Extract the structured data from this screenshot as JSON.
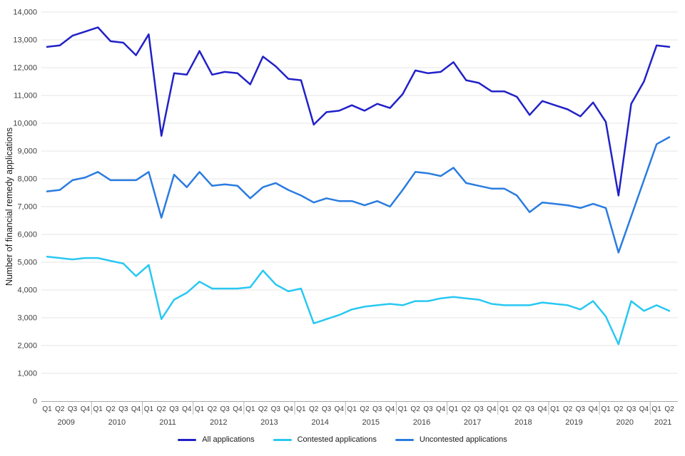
{
  "chart_data": {
    "type": "line",
    "title": "",
    "ylabel": "Number of financial remedy applications",
    "y_axis": {
      "min": 0,
      "max": 14000,
      "step": 1000
    },
    "grid": "horizontal",
    "legend_position": "bottom",
    "x_axis": {
      "years": [
        {
          "label": "2009",
          "quarters": [
            "Q1",
            "Q2",
            "Q3",
            "Q4"
          ]
        },
        {
          "label": "2010",
          "quarters": [
            "Q1",
            "Q2",
            "Q3",
            "Q4"
          ]
        },
        {
          "label": "2011",
          "quarters": [
            "Q1",
            "Q2",
            "Q3",
            "Q4"
          ]
        },
        {
          "label": "2012",
          "quarters": [
            "Q1",
            "Q2",
            "Q3",
            "Q4"
          ]
        },
        {
          "label": "2013",
          "quarters": [
            "Q1",
            "Q2",
            "Q3",
            "Q4"
          ]
        },
        {
          "label": "2014",
          "quarters": [
            "Q1",
            "Q2",
            "Q3",
            "Q4"
          ]
        },
        {
          "label": "2015",
          "quarters": [
            "Q1",
            "Q2",
            "Q3",
            "Q4"
          ]
        },
        {
          "label": "2016",
          "quarters": [
            "Q1",
            "Q2",
            "Q3",
            "Q4"
          ]
        },
        {
          "label": "2017",
          "quarters": [
            "Q1",
            "Q2",
            "Q3",
            "Q4"
          ]
        },
        {
          "label": "2018",
          "quarters": [
            "Q1",
            "Q2",
            "Q3",
            "Q4"
          ]
        },
        {
          "label": "2019",
          "quarters": [
            "Q1",
            "Q2",
            "Q3",
            "Q4"
          ]
        },
        {
          "label": "2020",
          "quarters": [
            "Q1",
            "Q2",
            "Q3",
            "Q4"
          ]
        },
        {
          "label": "2021",
          "quarters": [
            "Q1",
            "Q2"
          ]
        }
      ]
    },
    "series": [
      {
        "name": "All applications",
        "color": "#2121c8",
        "values": [
          12750,
          12800,
          13150,
          13300,
          13450,
          12950,
          12900,
          12450,
          13200,
          9550,
          11800,
          11750,
          12600,
          11750,
          11850,
          11800,
          11400,
          12400,
          12050,
          11600,
          11550,
          9950,
          10400,
          10450,
          10650,
          10450,
          10700,
          10550,
          11050,
          11900,
          11800,
          11850,
          12200,
          11550,
          11450,
          11150,
          11150,
          10950,
          10300,
          10800,
          10650,
          10500,
          10250,
          10750,
          10050,
          7400,
          10700,
          11500,
          12800,
          12750
        ]
      },
      {
        "name": "Contested applications",
        "color": "#29c8f2",
        "values": [
          5200,
          5150,
          5100,
          5150,
          5150,
          5050,
          4950,
          4500,
          4900,
          2950,
          3650,
          3900,
          4300,
          4050,
          4050,
          4050,
          4100,
          4700,
          4200,
          3950,
          4050,
          2800,
          2950,
          3100,
          3300,
          3400,
          3450,
          3500,
          3450,
          3600,
          3600,
          3700,
          3750,
          3700,
          3650,
          3500,
          3450,
          3450,
          3450,
          3550,
          3500,
          3450,
          3300,
          3600,
          3050,
          2050,
          3600,
          3250,
          3450,
          3250
        ]
      },
      {
        "name": "Uncontested applications",
        "color": "#2a7ce0",
        "values": [
          7550,
          7600,
          7950,
          8050,
          8250,
          7950,
          7950,
          7950,
          8250,
          6600,
          8150,
          7700,
          8250,
          7750,
          7800,
          7750,
          7300,
          7700,
          7850,
          7600,
          7400,
          7150,
          7300,
          7200,
          7200,
          7050,
          7200,
          7000,
          7600,
          8250,
          8200,
          8100,
          8400,
          7850,
          7750,
          7650,
          7650,
          7400,
          6800,
          7150,
          7100,
          7050,
          6950,
          7100,
          6950,
          5350,
          6650,
          7950,
          9250,
          9500
        ]
      }
    ],
    "style": {
      "gridline_color": "#e6e6e6",
      "axis_color": "#a8a8a8",
      "separator_color": "#b4b4b4",
      "tick_text_color": "#404040",
      "line_width": 2.5
    }
  }
}
